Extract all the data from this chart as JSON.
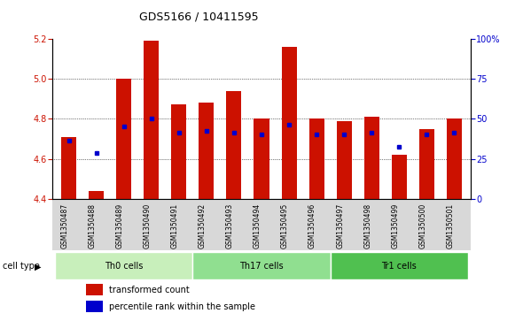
{
  "title": "GDS5166 / 10411595",
  "samples": [
    "GSM1350487",
    "GSM1350488",
    "GSM1350489",
    "GSM1350490",
    "GSM1350491",
    "GSM1350492",
    "GSM1350493",
    "GSM1350494",
    "GSM1350495",
    "GSM1350496",
    "GSM1350497",
    "GSM1350498",
    "GSM1350499",
    "GSM1350500",
    "GSM1350501"
  ],
  "red_values": [
    4.71,
    4.44,
    5.0,
    5.19,
    4.87,
    4.88,
    4.94,
    4.8,
    5.16,
    4.8,
    4.79,
    4.81,
    4.62,
    4.75,
    4.8
  ],
  "blue_values": [
    4.69,
    4.63,
    4.76,
    4.8,
    4.73,
    4.74,
    4.73,
    4.72,
    4.77,
    4.72,
    4.72,
    4.73,
    4.66,
    4.72,
    4.73
  ],
  "y_min": 4.4,
  "y_max": 5.2,
  "y_ticks": [
    4.4,
    4.6,
    4.8,
    5.0,
    5.2
  ],
  "right_y_labels": [
    "0",
    "25",
    "50",
    "75",
    "100%"
  ],
  "cell_groups": [
    {
      "label": "Th0 cells",
      "start": 0,
      "end": 4,
      "color": "#c8efbb"
    },
    {
      "label": "Th17 cells",
      "start": 5,
      "end": 9,
      "color": "#90df90"
    },
    {
      "label": "Tr1 cells",
      "start": 10,
      "end": 14,
      "color": "#50c050"
    }
  ],
  "bar_color": "#cc1100",
  "dot_color": "#0000cc",
  "bar_width": 0.55,
  "axis_color": "#cc1100",
  "right_axis_color": "#0000cc",
  "sample_area_bg": "#d8d8d8",
  "plot_bg": "#ffffff",
  "legend_items": [
    {
      "label": "transformed count",
      "color": "#cc1100"
    },
    {
      "label": "percentile rank within the sample",
      "color": "#0000cc"
    }
  ]
}
